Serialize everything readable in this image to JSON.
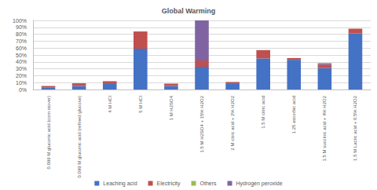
{
  "chart_data": {
    "type": "bar",
    "title": "Global Warming",
    "categories": [
      "0.099 M gluconic acid (corn stover)",
      "0.099 M gluconic acid (refined glucose)",
      "4 M HCl",
      "5 M HCl",
      "1 M H2SO4",
      "1.5 M H2SO4 + 15% H2O2",
      "2 M citric acid + 2% H2O2",
      "1.5 M citric acid",
      "1.25 ascorbic acid",
      "1.5 M succinic acid + 4% H2O2",
      "1.5 M Lactic acid + 0.5% H2O2"
    ],
    "series": [
      {
        "name": "Leaching acid",
        "color": "#4472c4",
        "values": [
          3,
          5,
          9,
          59,
          5,
          33,
          9,
          45,
          43,
          31,
          81
        ]
      },
      {
        "name": "Electricity",
        "color": "#c0504d",
        "values": [
          2,
          4,
          3,
          25,
          3.5,
          9,
          1.5,
          12,
          2.5,
          5,
          7
        ]
      },
      {
        "name": "Others",
        "color": "#9bbb59",
        "values": [
          0,
          0,
          0,
          0,
          0,
          0,
          0,
          0,
          0,
          0,
          0
        ]
      },
      {
        "name": "Hydrogen peroxide",
        "color": "#8064a2",
        "values": [
          0,
          0,
          0,
          0,
          0,
          58,
          0.5,
          0,
          0,
          2,
          0
        ]
      }
    ],
    "ylim": [
      0,
      100
    ],
    "yticks": [
      {
        "value": 0,
        "label": "0%"
      },
      {
        "value": 10,
        "label": "10%"
      },
      {
        "value": 20,
        "label": "20%"
      },
      {
        "value": 30,
        "label": "30%"
      },
      {
        "value": 40,
        "label": "40%"
      },
      {
        "value": 50,
        "label": "50%"
      },
      {
        "value": 60,
        "label": "60%"
      },
      {
        "value": 70,
        "label": "70%"
      },
      {
        "value": 80,
        "label": "80%"
      },
      {
        "value": 90,
        "label": "90%"
      },
      {
        "value": 100,
        "label": "100%"
      }
    ],
    "stacked": true,
    "grid": true,
    "legend": "bottom"
  }
}
